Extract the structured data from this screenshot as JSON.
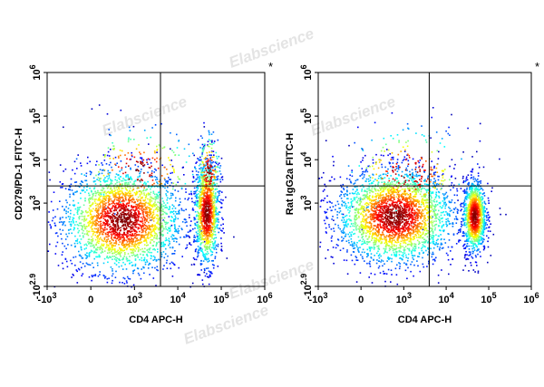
{
  "watermark_text": "Elabscience",
  "watermark_mark": "®",
  "chart_data": [
    {
      "type": "scatter",
      "title": "",
      "xlabel": "CD4 APC-H",
      "ylabel": "CD279/PD-1 FITC-H",
      "marker": "*",
      "xscale": "biexponential",
      "yscale": "biexponential",
      "xlim": [
        -1000,
        1000000
      ],
      "ylim": [
        -794,
        1000000
      ],
      "xticks": [
        {
          "value": -1000,
          "base": "-10",
          "exp": "3"
        },
        {
          "value": 0,
          "base": "0",
          "exp": ""
        },
        {
          "value": 1000,
          "base": "10",
          "exp": "3"
        },
        {
          "value": 10000,
          "base": "10",
          "exp": "4"
        },
        {
          "value": 100000,
          "base": "10",
          "exp": "5"
        },
        {
          "value": 1000000,
          "base": "10",
          "exp": "6"
        }
      ],
      "yticks": [
        {
          "value": -794,
          "base": "-10",
          "exp": "2.9"
        },
        {
          "value": 1000,
          "base": "10",
          "exp": "3"
        },
        {
          "value": 10000,
          "base": "10",
          "exp": "4"
        },
        {
          "value": 100000,
          "base": "10",
          "exp": "5"
        },
        {
          "value": 1000000,
          "base": "10",
          "exp": "6"
        }
      ],
      "quadrant_gate": {
        "x": 4000,
        "y": 2500
      },
      "grid": false,
      "populations": [
        {
          "cx": 500,
          "cy": 400,
          "sdx": 0.62,
          "sdy": 0.55,
          "weight": 0.62
        },
        {
          "cx": 45000,
          "cy": 600,
          "sdx": 0.13,
          "sdy": 0.55,
          "weight": 0.28
        },
        {
          "cx": 50000,
          "cy": 5000,
          "sdx": 0.12,
          "sdy": 0.45,
          "weight": 0.05
        },
        {
          "cx": 1200,
          "cy": 6000,
          "sdx": 0.65,
          "sdy": 0.45,
          "weight": 0.05
        }
      ]
    },
    {
      "type": "scatter",
      "title": "",
      "xlabel": "CD4 APC-H",
      "ylabel": "Rat IgG2a FITC-H",
      "marker": "*",
      "xscale": "biexponential",
      "yscale": "biexponential",
      "xlim": [
        -1000,
        1000000
      ],
      "ylim": [
        -794,
        1000000
      ],
      "xticks": [
        {
          "value": -1000,
          "base": "-10",
          "exp": "3"
        },
        {
          "value": 0,
          "base": "0",
          "exp": ""
        },
        {
          "value": 1000,
          "base": "10",
          "exp": "3"
        },
        {
          "value": 10000,
          "base": "10",
          "exp": "4"
        },
        {
          "value": 100000,
          "base": "10",
          "exp": "5"
        },
        {
          "value": 1000000,
          "base": "10",
          "exp": "6"
        }
      ],
      "yticks": [
        {
          "value": -794,
          "base": "-10",
          "exp": "2.9"
        },
        {
          "value": 1000,
          "base": "10",
          "exp": "3"
        },
        {
          "value": 10000,
          "base": "10",
          "exp": "4"
        },
        {
          "value": 100000,
          "base": "10",
          "exp": "5"
        },
        {
          "value": 1000000,
          "base": "10",
          "exp": "6"
        }
      ],
      "quadrant_gate": {
        "x": 4000,
        "y": 2500
      },
      "grid": false,
      "populations": [
        {
          "cx": 600,
          "cy": 500,
          "sdx": 0.62,
          "sdy": 0.5,
          "weight": 0.66
        },
        {
          "cx": 45000,
          "cy": 500,
          "sdx": 0.12,
          "sdy": 0.38,
          "weight": 0.28
        },
        {
          "cx": 1200,
          "cy": 5000,
          "sdx": 0.65,
          "sdy": 0.5,
          "weight": 0.06
        }
      ]
    }
  ]
}
